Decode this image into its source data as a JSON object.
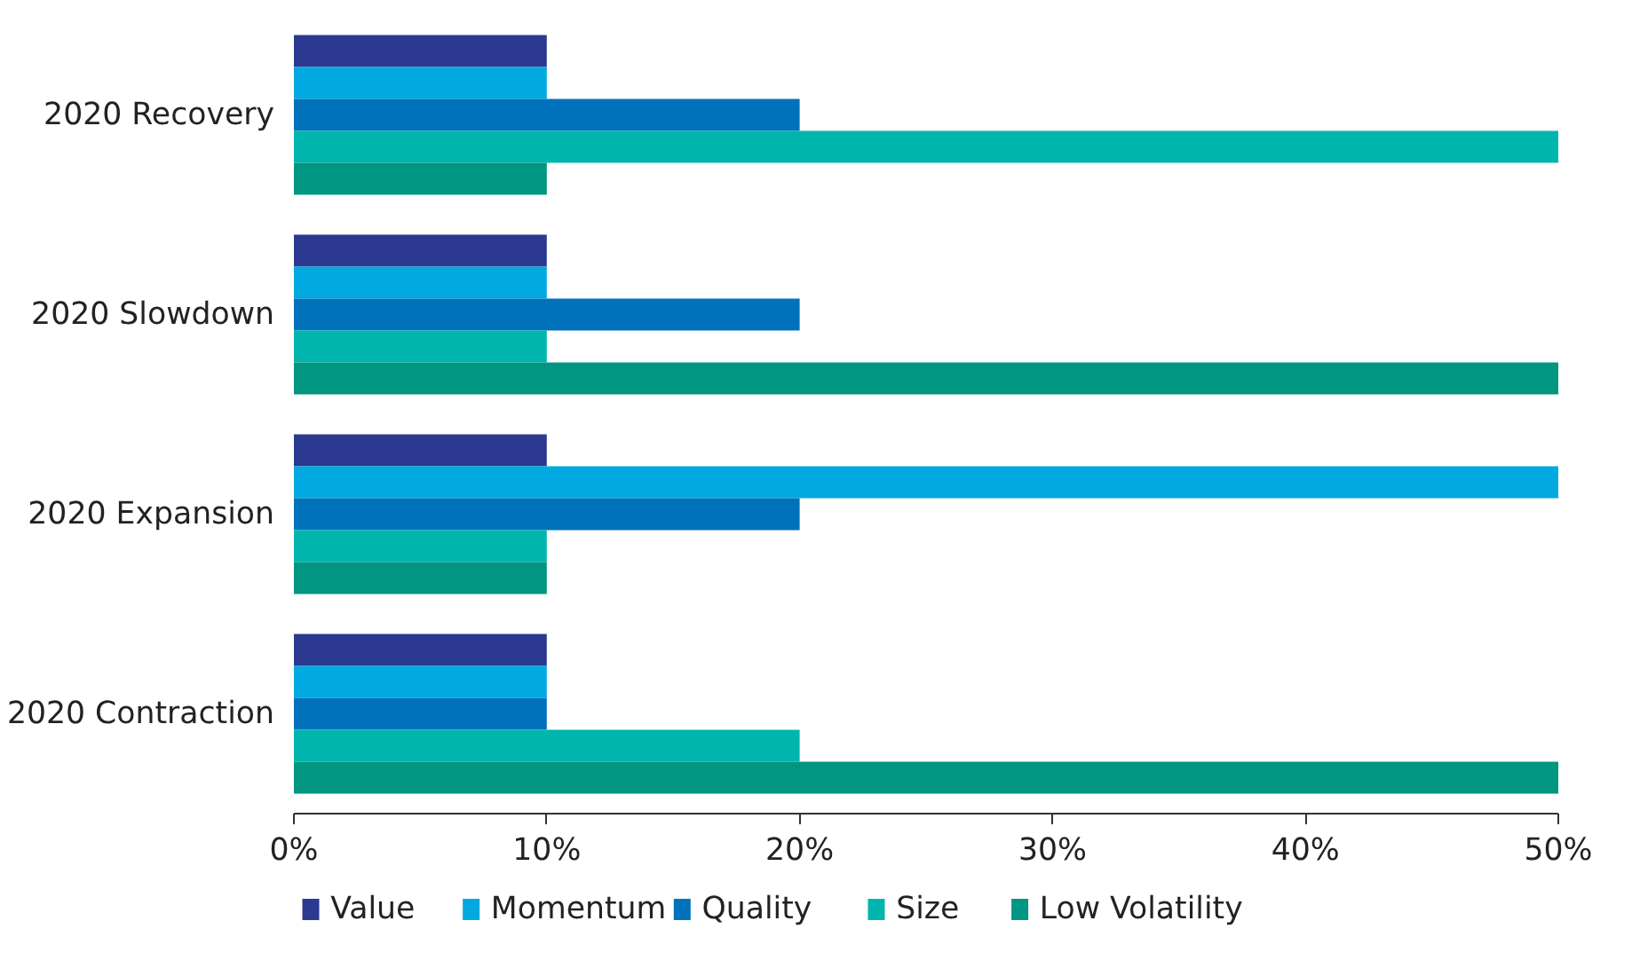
{
  "chart_data": {
    "type": "bar",
    "orientation": "horizontal",
    "categories": [
      "2020 Recovery",
      "2020 Slowdown",
      "2020 Expansion",
      "2020 Contraction"
    ],
    "series": [
      {
        "name": "Value",
        "color": "#2b3990",
        "values": [
          10,
          10,
          10,
          10
        ]
      },
      {
        "name": "Momentum",
        "color": "#00a9e0",
        "values": [
          10,
          10,
          50,
          10
        ]
      },
      {
        "name": "Quality",
        "color": "#0072bc",
        "values": [
          20,
          20,
          20,
          10
        ]
      },
      {
        "name": "Size",
        "color": "#00b5ad",
        "values": [
          50,
          10,
          10,
          20
        ]
      },
      {
        "name": "Low Volatility",
        "color": "#009681",
        "values": [
          10,
          50,
          10,
          50
        ]
      }
    ],
    "xlim": [
      0,
      50
    ],
    "xticks": [
      {
        "value": 0,
        "label": "0%"
      },
      {
        "value": 10,
        "label": "10%"
      },
      {
        "value": 20,
        "label": "20%"
      },
      {
        "value": 30,
        "label": "30%"
      },
      {
        "value": 40,
        "label": "40%"
      },
      {
        "value": 50,
        "label": "50%"
      }
    ],
    "grid": false,
    "legend": "bottom"
  }
}
